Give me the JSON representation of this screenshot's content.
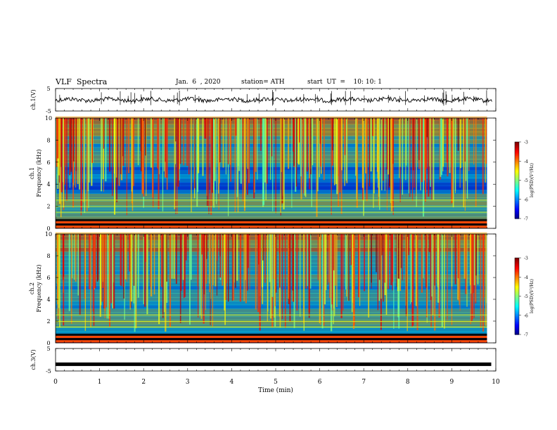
{
  "header": {
    "title": "VLF  Spectra",
    "date": "Jan.  6  , 2020",
    "station": "station= ATH",
    "start": "start  UT  =    10: 10: 1"
  },
  "chart_data": [
    {
      "type": "line",
      "panel": "ch1-waveform",
      "ylabel": "ch.1(V)",
      "yticks": [
        "5",
        "-5"
      ],
      "ylim": [
        -5,
        5
      ],
      "xlim": [
        0,
        10
      ],
      "description_values": "dense noisy waveform centered near 0 V with spikes up to ~3 V"
    },
    {
      "type": "heatmap",
      "panel": "ch1-spectrogram",
      "ylabel": "ch.1\nFrequency  (kHz)",
      "ylabel_lines": [
        "ch.1",
        "Frequency  (kHz)"
      ],
      "yticks": [
        "0",
        "2",
        "4",
        "6",
        "8",
        "10"
      ],
      "ylim": [
        0,
        10
      ],
      "xlim": [
        0,
        10
      ],
      "data_xmax": 9.8,
      "colorbar": {
        "label": "log(PSD)(V²/Hz)",
        "ticks": [
          "-3",
          "-4",
          "-5",
          "-6",
          "-7"
        ],
        "range": [
          -7,
          -3
        ]
      }
    },
    {
      "type": "heatmap",
      "panel": "ch2-spectrogram",
      "ylabel_lines": [
        "ch.2",
        "Frequency  (kHz)"
      ],
      "yticks": [
        "0",
        "2",
        "4",
        "6",
        "8",
        "10"
      ],
      "ylim": [
        0,
        10
      ],
      "xlim": [
        0,
        10
      ],
      "data_xmax": 9.8,
      "colorbar": {
        "label": "log(PSD)(V²/Hz)",
        "ticks": [
          "-3",
          "-4",
          "-5",
          "-6",
          "-7"
        ],
        "range": [
          -7,
          -3
        ]
      }
    },
    {
      "type": "line",
      "panel": "ch3-waveform",
      "ylabel": "ch.3(V)",
      "yticks": [
        "5",
        "-5"
      ],
      "ylim": [
        -5,
        5
      ],
      "xlim": [
        0,
        10
      ],
      "values_constant": -2.0
    }
  ],
  "xaxis": {
    "label": "Time  (min)",
    "ticks": [
      "0",
      "1",
      "2",
      "3",
      "4",
      "5",
      "6",
      "7",
      "8",
      "9",
      "10"
    ]
  }
}
